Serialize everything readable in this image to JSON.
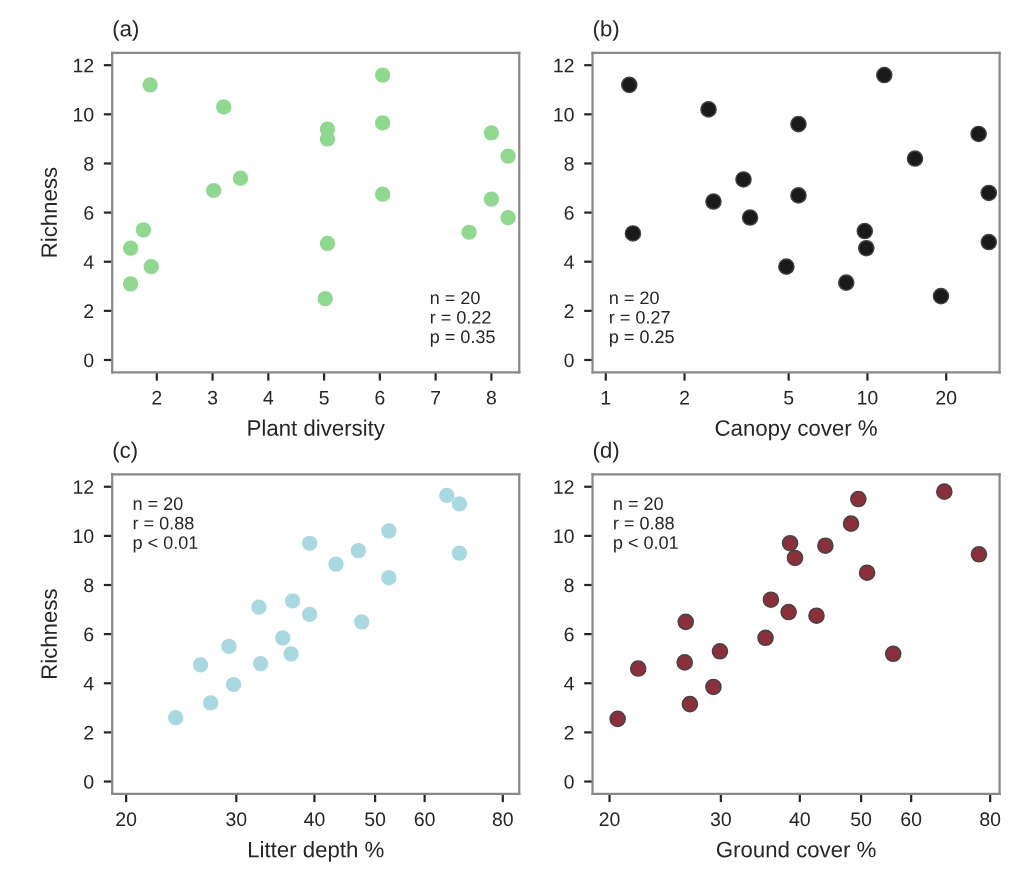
{
  "chart_data": [
    {
      "type": "scatter",
      "title": "(a)",
      "xlabel": "Plant diversity",
      "ylabel": "Richness",
      "xlim": [
        1.2,
        8.5
      ],
      "xticks": [
        2,
        3,
        4,
        5,
        6,
        7,
        8
      ],
      "ylim": [
        -0.5,
        12.5
      ],
      "yticks": [
        0,
        2,
        4,
        6,
        8,
        10,
        12
      ],
      "marker": "circle",
      "grid": false,
      "annotations": [
        "n = 20\nr = 0.22\np = 0.35"
      ],
      "series": [
        {
          "color": "#8fd98f",
          "x": [
            1.88,
            1.53,
            1.53,
            1.76,
            1.9,
            3.02,
            3.2,
            3.5,
            5.02,
            5.06,
            5.06,
            5.06,
            6.05,
            6.05,
            6.05,
            7.6,
            8.0,
            8.0,
            8.3,
            8.3
          ],
          "values": [
            11.2,
            3.1,
            4.55,
            5.3,
            3.8,
            6.9,
            10.3,
            7.4,
            2.5,
            4.75,
            9.0,
            9.4,
            11.6,
            9.65,
            6.75,
            5.2,
            9.25,
            6.55,
            8.3,
            5.8
          ]
        }
      ]
    },
    {
      "type": "scatter",
      "title": "(b)",
      "xlabel": "Canopy cover %",
      "log": "x",
      "xlim": [
        0.89,
        32
      ],
      "xticks": [
        1,
        2,
        5,
        10,
        20
      ],
      "ylim": [
        -0.5,
        12.5
      ],
      "yticks": [
        0,
        2,
        4,
        6,
        8,
        10,
        12
      ],
      "marker": "circle",
      "grid": false,
      "annotations": [
        "n = 20\nr = 0.27\np = 0.25"
      ],
      "series": [
        {
          "color": "#1a1a1a",
          "x": [
            1.23,
            1.27,
            2.47,
            2.58,
            3.36,
            3.56,
            4.9,
            5.45,
            5.45,
            8.3,
            9.77,
            9.9,
            11.6,
            15.2,
            19.1,
            26.6,
            29.1,
            29.1
          ],
          "values": [
            11.2,
            5.15,
            10.2,
            6.45,
            7.35,
            5.8,
            3.8,
            9.6,
            6.7,
            3.15,
            5.25,
            4.55,
            11.6,
            8.2,
            2.6,
            9.2,
            6.8,
            4.8
          ]
        }
      ]
    },
    {
      "type": "scatter",
      "title": "(c)",
      "xlabel": "Litter depth %",
      "ylabel": "Richness",
      "log": "x",
      "xlim": [
        19,
        85
      ],
      "xticks": [
        20,
        30,
        40,
        50,
        60,
        80
      ],
      "ylim": [
        -0.5,
        12.5
      ],
      "yticks": [
        0,
        2,
        4,
        6,
        8,
        10,
        12
      ],
      "marker": "circle",
      "grid": false,
      "annotations": [
        "n = 20\nr = 0.88\np < 0.01"
      ],
      "series": [
        {
          "color": "#a8d8e0",
          "x": [
            24.0,
            26.3,
            27.3,
            29.2,
            29.7,
            32.6,
            32.8,
            35.6,
            36.9,
            36.7,
            39.3,
            39.3,
            43.3,
            47.0,
            47.6,
            52.6,
            52.6,
            65.1,
            68.2,
            68.2
          ],
          "values": [
            2.6,
            4.75,
            3.2,
            5.5,
            3.95,
            7.1,
            4.8,
            5.85,
            7.35,
            5.2,
            9.7,
            6.8,
            8.85,
            9.4,
            6.5,
            10.2,
            8.3,
            11.65,
            11.3,
            9.3
          ]
        }
      ]
    },
    {
      "type": "scatter",
      "title": "(d)",
      "xlabel": "Ground cover %",
      "log": "x",
      "xlim": [
        18.8,
        82.8
      ],
      "xticks": [
        20,
        30,
        40,
        50,
        60,
        80
      ],
      "ylim": [
        -0.5,
        12.5
      ],
      "yticks": [
        0,
        2,
        4,
        6,
        8,
        10,
        12
      ],
      "marker": "circle",
      "grid": false,
      "annotations": [
        "n = 20\nr = 0.88\np < 0.01"
      ],
      "series": [
        {
          "color": "#8b2f3a",
          "x": [
            20.6,
            22.2,
            26.4,
            26.3,
            26.8,
            29.2,
            29.9,
            35.3,
            36.0,
            38.4,
            38.6,
            39.3,
            42.5,
            43.9,
            48.2,
            49.5,
            51.1,
            56.2,
            67.7,
            76.8
          ],
          "values": [
            2.55,
            4.6,
            6.5,
            4.85,
            3.15,
            3.85,
            5.3,
            5.85,
            7.4,
            6.9,
            9.7,
            9.1,
            6.75,
            9.6,
            10.5,
            11.5,
            8.5,
            5.2,
            11.8,
            9.25
          ]
        }
      ]
    }
  ]
}
